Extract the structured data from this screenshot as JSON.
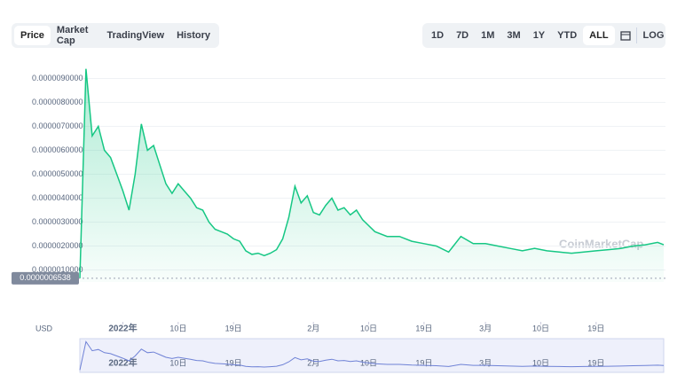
{
  "tabs": [
    "Price",
    "Market Cap",
    "TradingView",
    "History"
  ],
  "ranges": [
    "1D",
    "7D",
    "1M",
    "3M",
    "1Y",
    "YTD",
    "ALL"
  ],
  "log_button": "LOG",
  "currency": "USD",
  "watermark": "CoinMarketCap",
  "chart_data": {
    "type": "area",
    "color": "#16c784",
    "x": [
      "2021-12-25",
      "2021-12-26",
      "2021-12-27",
      "2021-12-28",
      "2021-12-29",
      "2021-12-30",
      "2021-12-31",
      "2022-01-01",
      "2022-01-02",
      "2022-01-03",
      "2022-01-04",
      "2022-01-05",
      "2022-01-06",
      "2022-01-07",
      "2022-01-08",
      "2022-01-09",
      "2022-01-10",
      "2022-01-11",
      "2022-01-12",
      "2022-01-13",
      "2022-01-14",
      "2022-01-15",
      "2022-01-16",
      "2022-01-17",
      "2022-01-18",
      "2022-01-19",
      "2022-01-20",
      "2022-01-21",
      "2022-01-22",
      "2022-01-23",
      "2022-01-24",
      "2022-01-25",
      "2022-01-26",
      "2022-01-27",
      "2022-01-28",
      "2022-01-29",
      "2022-01-30",
      "2022-01-31",
      "2022-02-01",
      "2022-02-02",
      "2022-02-03",
      "2022-02-04",
      "2022-02-05",
      "2022-02-06",
      "2022-02-07",
      "2022-02-08",
      "2022-02-09",
      "2022-02-11",
      "2022-02-13",
      "2022-02-15",
      "2022-02-17",
      "2022-02-19",
      "2022-02-21",
      "2022-02-23",
      "2022-02-25",
      "2022-02-27",
      "2022-03-01",
      "2022-03-03",
      "2022-03-05",
      "2022-03-07",
      "2022-03-09",
      "2022-03-11",
      "2022-03-13",
      "2022-03-15",
      "2022-03-17",
      "2022-03-19",
      "2022-03-21",
      "2022-03-23",
      "2022-03-25",
      "2022-03-27",
      "2022-03-29",
      "2022-03-30"
    ],
    "values": [
      6.5e-07,
      9.4e-06,
      6.6e-06,
      7e-06,
      6e-06,
      5.7e-06,
      5e-06,
      4.3e-06,
      3.5e-06,
      5e-06,
      7.1e-06,
      6e-06,
      6.2e-06,
      5.4e-06,
      4.6e-06,
      4.2e-06,
      4.6e-06,
      4.3e-06,
      4e-06,
      3.6e-06,
      3.5e-06,
      3e-06,
      2.7e-06,
      2.6e-06,
      2.5e-06,
      2.3e-06,
      2.2e-06,
      1.8e-06,
      1.65e-06,
      1.7e-06,
      1.6e-06,
      1.7e-06,
      1.85e-06,
      2.3e-06,
      3.2e-06,
      4.5e-06,
      3.8e-06,
      4.1e-06,
      3.4e-06,
      3.3e-06,
      3.7e-06,
      4e-06,
      3.5e-06,
      3.6e-06,
      3.3e-06,
      3.5e-06,
      3.1e-06,
      2.6e-06,
      2.4e-06,
      2.4e-06,
      2.2e-06,
      2.1e-06,
      2e-06,
      1.75e-06,
      2.4e-06,
      2.1e-06,
      2.1e-06,
      2e-06,
      1.9e-06,
      1.8e-06,
      1.9e-06,
      1.8e-06,
      1.75e-06,
      1.7e-06,
      1.75e-06,
      1.8e-06,
      1.85e-06,
      1.9e-06,
      2e-06,
      2.05e-06,
      2.15e-06,
      2.05e-06
    ],
    "xlim": [
      "2021-12-25",
      "2022-03-30"
    ],
    "xticks": [
      {
        "value": "2022-01-01",
        "label": "2022年"
      },
      {
        "value": "2022-01-10",
        "label": "10日"
      },
      {
        "value": "2022-01-19",
        "label": "19日"
      },
      {
        "value": "2022-02-01",
        "label": "2月"
      },
      {
        "value": "2022-02-10",
        "label": "10日"
      },
      {
        "value": "2022-02-19",
        "label": "19日"
      },
      {
        "value": "2022-03-01",
        "label": "3月"
      },
      {
        "value": "2022-03-10",
        "label": "10日"
      },
      {
        "value": "2022-03-19",
        "label": "19日"
      }
    ],
    "ylim": [
      5e-07,
      9.5e-06
    ],
    "yticks": [
      {
        "value": 1e-06,
        "label": "0.0000010000"
      },
      {
        "value": 2e-06,
        "label": "0.0000020000"
      },
      {
        "value": 3e-06,
        "label": "0.0000030000"
      },
      {
        "value": 4e-06,
        "label": "0.0000040000"
      },
      {
        "value": 5e-06,
        "label": "0.0000050000"
      },
      {
        "value": 6e-06,
        "label": "0.0000060000"
      },
      {
        "value": 7e-06,
        "label": "0.0000070000"
      },
      {
        "value": 8e-06,
        "label": "0.0000080000"
      },
      {
        "value": 9e-06,
        "label": "0.0000090000"
      }
    ],
    "current_price": {
      "value": 6.538e-07,
      "label": "0.0000006538"
    },
    "grid": true
  }
}
